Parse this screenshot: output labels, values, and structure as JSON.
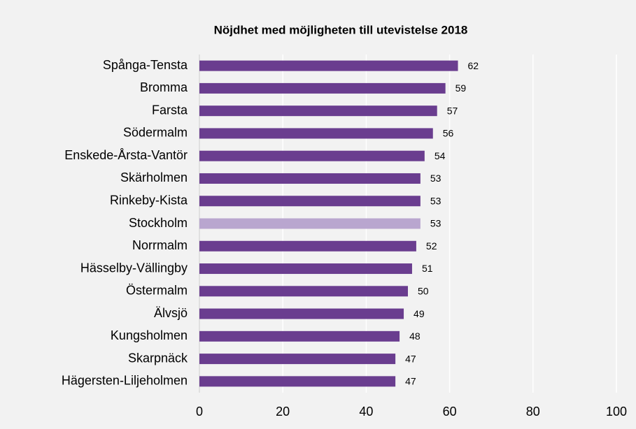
{
  "chart_data": {
    "type": "bar",
    "orientation": "horizontal",
    "title": "Nöjdhet med möjligheten till utevistelse 2018",
    "categories": [
      "Spånga-Tensta",
      "Bromma",
      "Farsta",
      "Södermalm",
      "Enskede-Årsta-Vantör",
      "Skärholmen",
      "Rinkeby-Kista",
      "Stockholm",
      "Norrmalm",
      "Hässelby-Vällingby",
      "Östermalm",
      "Älvsjö",
      "Kungsholmen",
      "Skarpnäck",
      "Hägersten-Liljeholmen"
    ],
    "values": [
      62,
      59,
      57,
      56,
      54,
      53,
      53,
      53,
      52,
      51,
      50,
      49,
      48,
      47,
      47
    ],
    "colors": [
      "#6a3d8f",
      "#6a3d8f",
      "#6a3d8f",
      "#6a3d8f",
      "#6a3d8f",
      "#6a3d8f",
      "#6a3d8f",
      "#b9a6cf",
      "#6a3d8f",
      "#6a3d8f",
      "#6a3d8f",
      "#6a3d8f",
      "#6a3d8f",
      "#6a3d8f",
      "#6a3d8f"
    ],
    "xlim": [
      0,
      100
    ],
    "xticks": [
      0,
      20,
      40,
      60,
      80,
      100
    ],
    "grid": true
  }
}
